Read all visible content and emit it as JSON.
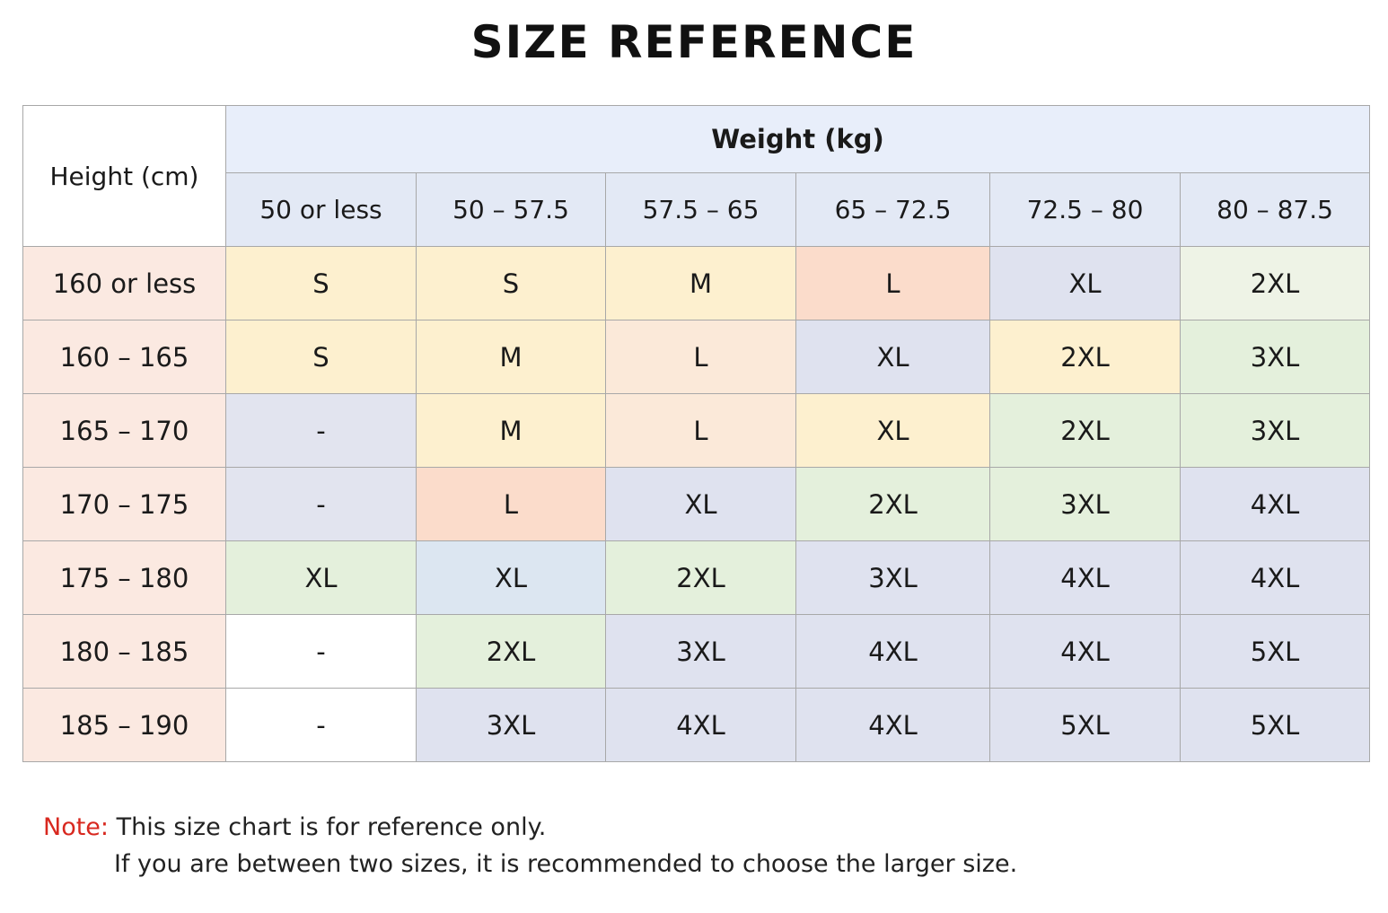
{
  "title": "SIZE REFERENCE",
  "table": {
    "corner_label": "Height (cm)",
    "weight_label": "Weight (kg)",
    "weight_ranges": [
      "50 or less",
      "50 – 57.5",
      "57.5 – 65",
      "65 – 72.5",
      "72.5 – 80",
      "80 – 87.5"
    ],
    "rows": [
      {
        "height": "160 or less",
        "sizes": [
          "S",
          "S",
          "M",
          "L",
          "XL",
          "2XL"
        ]
      },
      {
        "height": "160 – 165",
        "sizes": [
          "S",
          "M",
          "L",
          "XL",
          "2XL",
          "3XL"
        ]
      },
      {
        "height": "165 – 170",
        "sizes": [
          "-",
          "M",
          "L",
          "XL",
          "2XL",
          "3XL"
        ]
      },
      {
        "height": "170 – 175",
        "sizes": [
          "-",
          "L",
          "XL",
          "2XL",
          "3XL",
          "4XL"
        ]
      },
      {
        "height": "175 – 180",
        "sizes": [
          "XL",
          "XL",
          "2XL",
          "3XL",
          "4XL",
          "4XL"
        ]
      },
      {
        "height": "180 – 185",
        "sizes": [
          "-",
          "2XL",
          "3XL",
          "4XL",
          "4XL",
          "5XL"
        ]
      },
      {
        "height": "185 – 190",
        "sizes": [
          "-",
          "3XL",
          "4XL",
          "4XL",
          "5XL",
          "5XL"
        ]
      }
    ],
    "cell_colors": [
      [
        "#fdf0cf",
        "#fdf0cf",
        "#fdf0cf",
        "#fbdccb",
        "#dfe2ef",
        "#eef3e6"
      ],
      [
        "#fdf0cf",
        "#fdf0cf",
        "#fbe9d9",
        "#dfe2ef",
        "#fdf0cf",
        "#e4f0dc"
      ],
      [
        "#e2e4ef",
        "#fdf0cf",
        "#fbe9d9",
        "#fdf0cf",
        "#e4f0dc",
        "#e4f0dc"
      ],
      [
        "#e2e4ef",
        "#fbdccb",
        "#dfe2ef",
        "#e4f0dc",
        "#e4f0dc",
        "#dfe2ef"
      ],
      [
        "#e4f0dc",
        "#dce6f1",
        "#e4f0dc",
        "#dfe2ef",
        "#dfe2ef",
        "#dfe2ef"
      ],
      [
        "#ffffff",
        "#e4f0dc",
        "#dfe2ef",
        "#dfe2ef",
        "#dfe2ef",
        "#dfe2ef"
      ],
      [
        "#ffffff",
        "#dfe2ef",
        "#dfe2ef",
        "#dfe2ef",
        "#dfe2ef",
        "#dfe2ef"
      ]
    ]
  },
  "note": {
    "label": "Note:",
    "line1": "This size chart is for reference only.",
    "line2": "If you are between two sizes, it is recommended to choose the larger size."
  },
  "colors": {
    "note_label": "#d8281f",
    "row_header_bg": "#fbe9e1",
    "column_header_bg": "#e3e9f5"
  }
}
